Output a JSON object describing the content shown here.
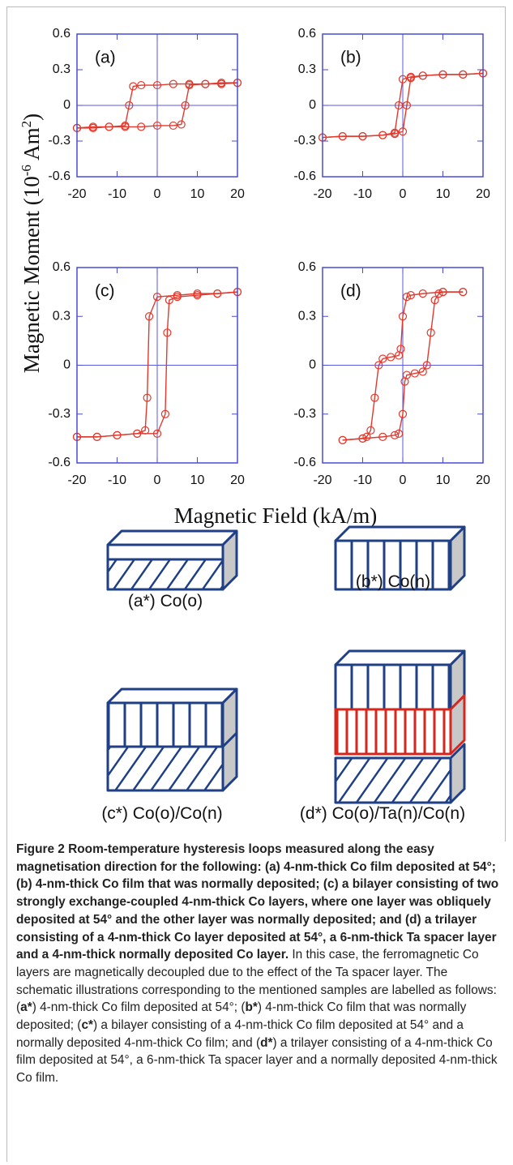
{
  "chart_data": [
    {
      "type": "line",
      "panel_label": "(a)",
      "xlim": [
        -20,
        20
      ],
      "xticks": [
        -20,
        -10,
        0,
        10,
        20
      ],
      "ylim": [
        -0.6,
        0.6
      ],
      "yticks": [
        -0.6,
        -0.3,
        0,
        0.3,
        0.6
      ],
      "zero_lines": true,
      "markers": "open-circle",
      "series": [
        {
          "color": "#e03a2e",
          "x": [
            20,
            16,
            12,
            8,
            4,
            0,
            -4,
            -6,
            -7,
            -8,
            -12,
            -16,
            -20
          ],
          "values": [
            0.19,
            0.19,
            0.18,
            0.18,
            0.18,
            0.17,
            0.17,
            0.16,
            0,
            -0.17,
            -0.18,
            -0.18,
            -0.19
          ]
        },
        {
          "color": "#e03a2e",
          "x": [
            -20,
            -16,
            -12,
            -8,
            -4,
            0,
            4,
            6,
            7,
            8,
            12,
            16,
            20
          ],
          "values": [
            -0.19,
            -0.19,
            -0.18,
            -0.18,
            -0.18,
            -0.17,
            -0.17,
            -0.16,
            0,
            0.17,
            0.18,
            0.18,
            0.19
          ]
        }
      ]
    },
    {
      "type": "line",
      "panel_label": "(b)",
      "xlim": [
        -20,
        20
      ],
      "xticks": [
        -20,
        -10,
        0,
        10,
        20
      ],
      "ylim": [
        -0.6,
        0.6
      ],
      "yticks": [
        -0.6,
        -0.3,
        0,
        0.3,
        0.6
      ],
      "zero_lines": true,
      "markers": "open-circle",
      "series": [
        {
          "color": "#e03a2e",
          "x": [
            20,
            15,
            10,
            5,
            2,
            0,
            -1,
            -2,
            -5,
            -10,
            -15,
            -20
          ],
          "values": [
            0.27,
            0.26,
            0.26,
            0.25,
            0.24,
            0.22,
            0,
            -0.23,
            -0.25,
            -0.26,
            -0.26,
            -0.27
          ]
        },
        {
          "color": "#e03a2e",
          "x": [
            -20,
            -15,
            -10,
            -5,
            -2,
            0,
            1,
            2,
            5,
            10,
            15,
            20
          ],
          "values": [
            -0.27,
            -0.26,
            -0.26,
            -0.25,
            -0.24,
            -0.22,
            0,
            0.23,
            0.25,
            0.26,
            0.26,
            0.27
          ]
        }
      ]
    },
    {
      "type": "line",
      "panel_label": "(c)",
      "xlim": [
        -20,
        20
      ],
      "xticks": [
        -20,
        -10,
        0,
        10,
        20
      ],
      "ylim": [
        -0.6,
        0.6
      ],
      "yticks": [
        -0.6,
        -0.3,
        0,
        0.3,
        0.6
      ],
      "zero_lines": true,
      "markers": "open-circle",
      "series": [
        {
          "color": "#e03a2e",
          "x": [
            20,
            15,
            10,
            5,
            0,
            -2,
            -2.5,
            -3,
            -5,
            -10,
            -15,
            -20
          ],
          "values": [
            0.45,
            0.44,
            0.44,
            0.43,
            0.42,
            0.3,
            -0.2,
            -0.4,
            -0.42,
            -0.43,
            -0.44,
            -0.44
          ]
        },
        {
          "color": "#e03a2e",
          "x": [
            -20,
            -15,
            -10,
            -5,
            0,
            2,
            2.5,
            3,
            5,
            10,
            15,
            20
          ],
          "values": [
            -0.44,
            -0.44,
            -0.43,
            -0.42,
            -0.42,
            -0.3,
            0.2,
            0.4,
            0.42,
            0.43,
            0.44,
            0.45
          ]
        }
      ]
    },
    {
      "type": "line",
      "panel_label": "(d)",
      "xlim": [
        -20,
        20
      ],
      "xticks": [
        -20,
        -10,
        0,
        10,
        20
      ],
      "ylim": [
        -0.6,
        0.6
      ],
      "yticks": [
        -0.6,
        -0.3,
        0,
        0.3,
        0.6
      ],
      "zero_lines": true,
      "markers": "open-circle",
      "series": [
        {
          "color": "#e03a2e",
          "x": [
            15,
            10,
            5,
            2,
            1,
            0,
            -0.5,
            -1,
            -3,
            -5,
            -6,
            -7,
            -8,
            -9,
            -10,
            -15
          ],
          "values": [
            0.45,
            0.45,
            0.44,
            0.43,
            0.42,
            0.3,
            0.1,
            0.06,
            0.05,
            0.04,
            0,
            -0.2,
            -0.4,
            -0.44,
            -0.45,
            -0.46
          ]
        },
        {
          "color": "#e03a2e",
          "x": [
            -15,
            -10,
            -5,
            -2,
            -1,
            0,
            0.5,
            1,
            3,
            5,
            6,
            7,
            8,
            9,
            10,
            15
          ],
          "values": [
            -0.46,
            -0.45,
            -0.44,
            -0.43,
            -0.42,
            -0.3,
            -0.1,
            -0.06,
            -0.05,
            -0.04,
            0,
            0.2,
            0.4,
            0.44,
            0.45,
            0.45
          ]
        }
      ]
    }
  ],
  "axis_labels": {
    "y_parts": [
      "Magnetic Moment (10",
      "-6",
      " Am",
      "2",
      ")"
    ],
    "x": "Magnetic Field (kA/m)"
  },
  "schematics": [
    "(a*) Co(o)",
    "(b*) Co(n)",
    "(c*) Co(o)/Co(n)",
    "(d*) Co(o)/Ta(n)/Co(n)"
  ],
  "caption": {
    "label": "Figure 2",
    "title": "Room-temperature hysteresis loops measured along the easy magnetisation direction for the following: (a) 4-nm-thick Co film deposited at 54°; (b) 4-nm-thick Co film that was normally deposited; (c) a bilayer consisting of two strongly exchange-coupled 4-nm-thick Co layers, where one layer was obliquely deposited at 54° and the other layer was normally deposited; and (d) a trilayer consisting of a 4-nm-thick Co layer deposited at 54°, a 6-nm-thick Ta spacer layer and a 4-nm-thick normally deposited Co layer.",
    "body": [
      " In this case, the ferromagnetic Co layers are magnetically decoupled due to the effect of the Ta spacer layer. The schematic illustrations corresponding to the mentioned samples are labelled as follows: (",
      "a*",
      ") 4-nm-thick Co film deposited at 54°; (",
      "b*",
      ") 4-nm-thick Co film that was normally deposited; (",
      "c*",
      ") a bilayer consisting of a 4-nm-thick Co film deposited at 54° and a normally deposited 4-nm-thick Co film; and (",
      "d*",
      ") a trilayer consisting of a 4-nm-thick Co film deposited at 54°, a 6-nm-thick Ta spacer layer and a normally deposited 4-nm-thick Co film."
    ]
  }
}
